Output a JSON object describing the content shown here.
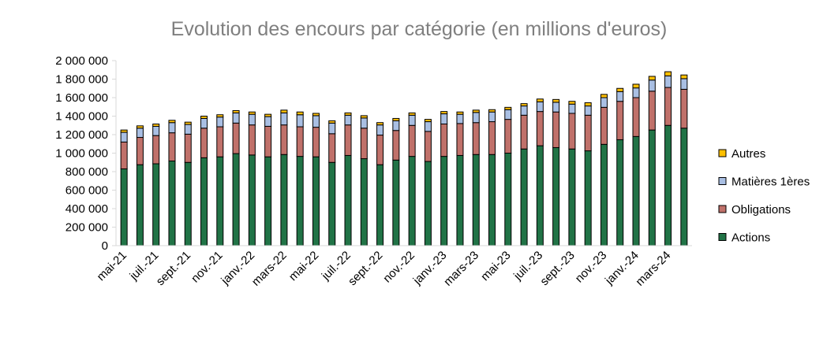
{
  "chart_data": {
    "type": "bar",
    "stacked": true,
    "title": "Evolution des encours par catégorie (en millions d'euros)",
    "xlabel": "",
    "ylabel": "",
    "ylim": [
      0,
      2000000
    ],
    "ytick_step": 200000,
    "ytick_labels": [
      "0",
      "200 000",
      "400 000",
      "600 000",
      "800 000",
      "1 000 000",
      "1 200 000",
      "1 400 000",
      "1 600 000",
      "1 800 000",
      "2 000 000"
    ],
    "grid": false,
    "legend_position": "right",
    "categories": [
      "mai-21",
      "juin-21",
      "juil.-21",
      "août-21",
      "sept.-21",
      "oct.-21",
      "nov.-21",
      "déc.-21",
      "janv.-22",
      "févr.-22",
      "mars-22",
      "avr.-22",
      "mai-22",
      "juin-22",
      "juil.-22",
      "août-22",
      "sept.-22",
      "oct.-22",
      "nov.-22",
      "déc.-22",
      "janv.-23",
      "févr.-23",
      "mars-23",
      "avr.-23",
      "mai-23",
      "juin-23",
      "juil.-23",
      "août-23",
      "sept.-23",
      "oct.-23",
      "nov.-23",
      "déc.-23",
      "janv.-24",
      "févr.-24",
      "mars-24",
      "avr.-24"
    ],
    "visible_tick_labels": [
      "mai-21",
      "juil.-21",
      "sept.-21",
      "nov.-21",
      "janv.-22",
      "mars-22",
      "mai-22",
      "juil.-22",
      "sept.-22",
      "nov.-22",
      "janv.-23",
      "mars-23",
      "mai-23",
      "juil.-23",
      "sept.-23",
      "nov.-23",
      "janv.-24",
      "mars-24"
    ],
    "series": [
      {
        "name": "Actions",
        "color": "#217346",
        "values": [
          830000,
          875000,
          885000,
          915000,
          900000,
          950000,
          960000,
          995000,
          980000,
          960000,
          985000,
          965000,
          960000,
          900000,
          975000,
          940000,
          875000,
          925000,
          965000,
          910000,
          965000,
          975000,
          985000,
          985000,
          1000000,
          1045000,
          1080000,
          1060000,
          1045000,
          1025000,
          1095000,
          1145000,
          1180000,
          1250000,
          1300000,
          1270000
        ]
      },
      {
        "name": "Obligations",
        "color": "#c0716a",
        "values": [
          290000,
          295000,
          305000,
          305000,
          305000,
          320000,
          325000,
          330000,
          325000,
          330000,
          320000,
          320000,
          320000,
          310000,
          330000,
          330000,
          320000,
          320000,
          335000,
          325000,
          350000,
          345000,
          345000,
          355000,
          365000,
          365000,
          370000,
          385000,
          385000,
          385000,
          400000,
          415000,
          420000,
          420000,
          410000,
          420000
        ]
      },
      {
        "name": "Matières 1ères",
        "color": "#a9bfe3",
        "values": [
          105000,
          100000,
          100000,
          110000,
          105000,
          105000,
          105000,
          110000,
          115000,
          105000,
          130000,
          130000,
          125000,
          115000,
          105000,
          110000,
          110000,
          105000,
          110000,
          105000,
          110000,
          100000,
          110000,
          105000,
          105000,
          100000,
          105000,
          105000,
          100000,
          100000,
          105000,
          105000,
          105000,
          120000,
          125000,
          115000
        ]
      },
      {
        "name": "Autres",
        "color": "#ffc000",
        "values": [
          25000,
          25000,
          25000,
          25000,
          25000,
          25000,
          25000,
          25000,
          25000,
          25000,
          30000,
          30000,
          25000,
          25000,
          25000,
          25000,
          25000,
          25000,
          25000,
          25000,
          25000,
          25000,
          25000,
          25000,
          25000,
          25000,
          30000,
          30000,
          30000,
          35000,
          35000,
          35000,
          40000,
          40000,
          45000,
          40000
        ]
      }
    ],
    "legend_order": [
      "Autres",
      "Matières 1ères",
      "Obligations",
      "Actions"
    ]
  }
}
